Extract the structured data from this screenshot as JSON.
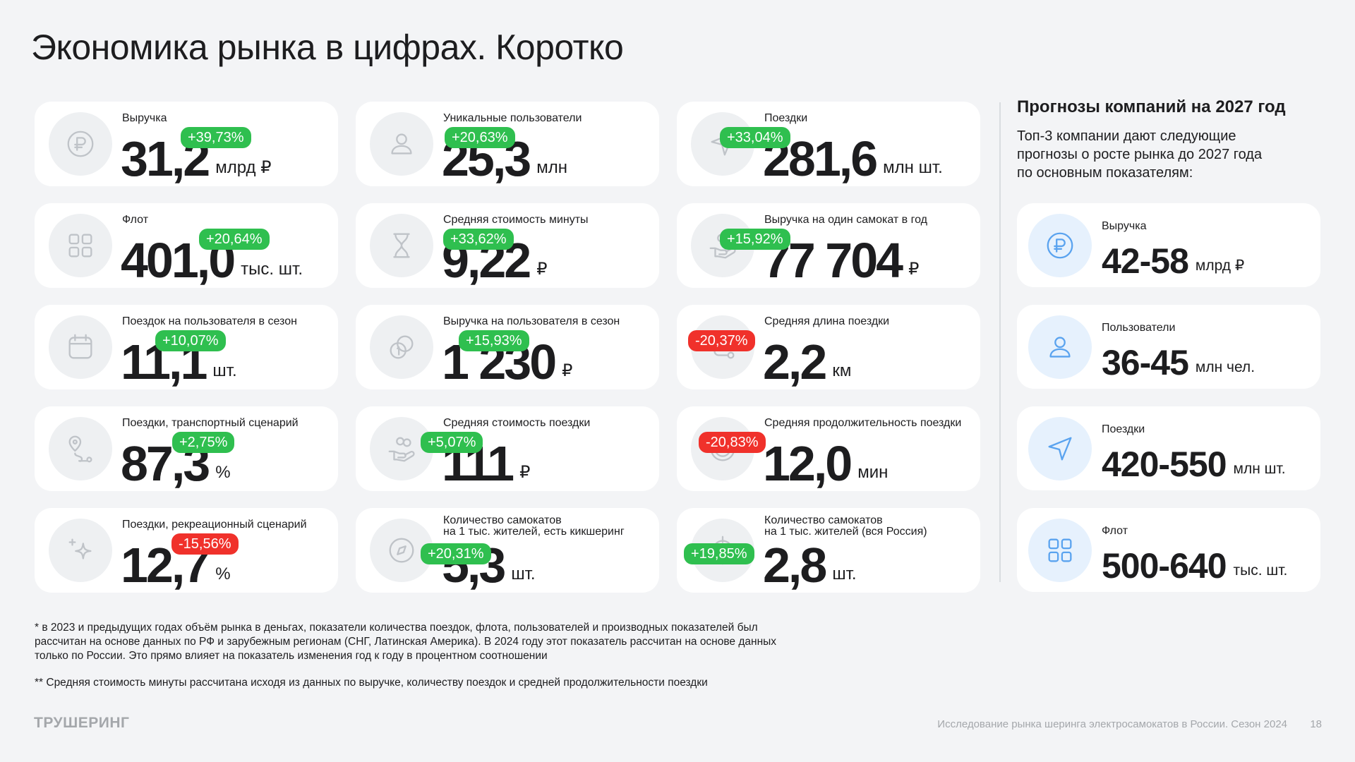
{
  "title": "Экономика рынка в цифрах. Коротко",
  "colors": {
    "positive": "#2fbf4f",
    "negative": "#f0312b",
    "icon_bg": "#eef0f2",
    "side_icon": "#5aa3ef"
  },
  "cards": [
    {
      "label": "Выручка",
      "value": "31,2",
      "unit": "млрд ₽",
      "change": "+39,73%",
      "trend": "up",
      "icon": "ruble-icon"
    },
    {
      "label": "Уникальные пользователи",
      "value": "25,3",
      "unit": "млн",
      "change": "+20,63%",
      "trend": "up",
      "icon": "user-icon"
    },
    {
      "label": "Поездки",
      "value": "281,6",
      "unit": "млн шт.",
      "change": "+33,04%",
      "trend": "up",
      "icon": "navigation-arrow-icon"
    },
    {
      "label": "Флот",
      "value": "401,0",
      "unit": "тыс. шт.",
      "change": "+20,64%",
      "trend": "up",
      "icon": "grid-icon"
    },
    {
      "label": "Средняя стоимость минуты",
      "value": "9,22",
      "unit": "₽",
      "change": "+33,62%",
      "trend": "up",
      "icon": "hourglass-icon"
    },
    {
      "label": "Выручка на один самокат в год",
      "value": "77 704",
      "unit": "₽",
      "change": "+15,92%",
      "trend": "up",
      "icon": "coins-hand-icon"
    },
    {
      "label": "Поездок на пользователя в сезон",
      "value": "11,1",
      "unit": "шт.",
      "change": "+10,07%",
      "trend": "up",
      "icon": "calendar-icon"
    },
    {
      "label": "Выручка на пользователя в сезон",
      "value": "1 230",
      "unit": "₽",
      "change": "+15,93%",
      "trend": "up",
      "icon": "coins-icon"
    },
    {
      "label": "Средняя длина поездки",
      "value": "2,2",
      "unit": "км",
      "change": "-20,37%",
      "trend": "down",
      "icon": "route-icon"
    },
    {
      "label": "Поездки, транспортный сценарий",
      "value": "87,3",
      "unit": "%",
      "change": "+2,75%",
      "trend": "up",
      "icon": "map-pin-route-icon"
    },
    {
      "label": "Средняя стоимость поездки",
      "value": "111",
      "unit": "₽",
      "change": "+5,07%",
      "trend": "up",
      "icon": "coins-hand-icon"
    },
    {
      "label": "Средняя продолжительность поездки",
      "value": "12,0",
      "unit": "мин",
      "change": "-20,83%",
      "trend": "down",
      "icon": "speedometer-icon"
    },
    {
      "label": "Поездки, рекреационный сценарий",
      "value": "12,7",
      "unit": "%",
      "change": "-15,56%",
      "trend": "down",
      "icon": "sparkle-icon"
    },
    {
      "label": "Количество самокатов\nна 1 тыс. жителей, есть кикшеринг",
      "value": "5,3",
      "unit": "шт.",
      "change": "+20,31%",
      "trend": "up",
      "icon": "compass-icon"
    },
    {
      "label": "Количество самокатов\nна 1 тыс. жителей (вся Россия)",
      "value": "2,8",
      "unit": "шт.",
      "change": "+19,85%",
      "trend": "up",
      "icon": "target-icon"
    }
  ],
  "forecast": {
    "title": "Прогнозы компаний на 2027 год",
    "description": "Топ-3 компании дают следующие прогнозы о росте рынка до 2027 года по основным показателям:",
    "items": [
      {
        "label": "Выручка",
        "value": "42-58",
        "unit": "млрд ₽",
        "icon": "ruble-icon"
      },
      {
        "label": "Пользователи",
        "value": "36-45",
        "unit": "млн чел.",
        "icon": "user-icon"
      },
      {
        "label": "Поездки",
        "value": "420-550",
        "unit": "млн шт.",
        "icon": "navigation-arrow-icon"
      },
      {
        "label": "Флот",
        "value": "500-640",
        "unit": "тыс. шт.",
        "icon": "grid-icon"
      }
    ]
  },
  "footnotes": [
    "* в 2023 и предыдущих годах объём рынка в деньгах, показатели количества поездок, флота, пользователей и производных показателей был рассчитан на основе данных по РФ и зарубежным регионам (СНГ, Латинская Америка). В 2024 году этот показатель рассчитан на основе данных только по России. Это прямо влияет на показатель изменения год к году в процентном соотношении",
    "** Средняя стоимость минуты рассчитана исходя из данных по выручке, количеству поездок и средней продолжительности поездки"
  ],
  "footer": {
    "brand": "ТРУШЕРИНГ",
    "text": "Исследование рынка шеринга электросамокатов в России. Сезон 2024",
    "page": "18"
  }
}
